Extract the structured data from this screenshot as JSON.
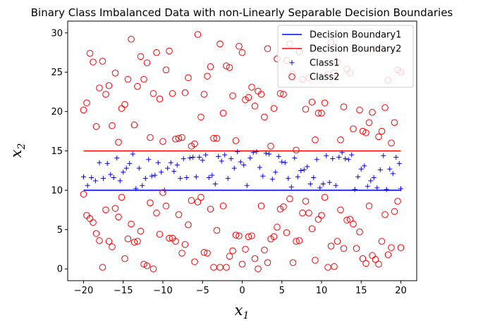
{
  "chart_data": {
    "type": "scatter",
    "title": "Binary Class Imbalanced Data with non-Linearly Separable Decision Boundaries",
    "xlabel": "x",
    "xlabel_sub": "1",
    "ylabel": "x",
    "ylabel_sub": "2",
    "xlim": [
      -22,
      22
    ],
    "ylim": [
      -1.5,
      31.5
    ],
    "xticks": [
      -20,
      -15,
      -10,
      -5,
      0,
      5,
      10,
      15,
      20
    ],
    "yticks": [
      0,
      5,
      10,
      15,
      20,
      25,
      30
    ],
    "legend_position": "top-right",
    "grid": false,
    "colors": {
      "boundary1": "#0000ff",
      "boundary2": "#ff0000",
      "class1": "#0000ff",
      "class2": "#ff0000"
    },
    "decision_boundaries": [
      {
        "name": "Decision Boundary1",
        "y": 10,
        "x_range": [
          -20,
          20
        ],
        "color": "#0000ff"
      },
      {
        "name": "Decision Boundary2",
        "y": 15,
        "x_range": [
          -20,
          20
        ],
        "color": "#ff0000"
      }
    ],
    "series": [
      {
        "name": "Class1",
        "marker": "plus",
        "color": "#0000ff",
        "points": [
          [
            -20,
            11.7
          ],
          [
            -19.5,
            10.6
          ],
          [
            -19,
            11.6
          ],
          [
            -18.5,
            11.2
          ],
          [
            -18,
            13.5
          ],
          [
            -17.5,
            11.5
          ],
          [
            -17,
            13.4
          ],
          [
            -16.6,
            12
          ],
          [
            -16.2,
            11.6
          ],
          [
            -15.8,
            14.1
          ],
          [
            -15.4,
            11.2
          ],
          [
            -15,
            12.3
          ],
          [
            -14.6,
            12.8
          ],
          [
            -14.2,
            13.4
          ],
          [
            -13.8,
            14.6
          ],
          [
            -13.4,
            10.2
          ],
          [
            -13,
            12.8
          ],
          [
            -12.6,
            10.6
          ],
          [
            -12.2,
            11.5
          ],
          [
            -11.8,
            13.9
          ],
          [
            -11.4,
            11.8
          ],
          [
            -11,
            11.9
          ],
          [
            -10.6,
            13.5
          ],
          [
            -10.2,
            12.3
          ],
          [
            -9.8,
            10
          ],
          [
            -9.4,
            12.8
          ],
          [
            -9,
            13.5
          ],
          [
            -8.6,
            12.4
          ],
          [
            -8.2,
            13.2
          ],
          [
            -7.8,
            11.5
          ],
          [
            -7.4,
            14
          ],
          [
            -7,
            11.6
          ],
          [
            -6.6,
            14.1
          ],
          [
            -6.2,
            14.2
          ],
          [
            -5.8,
            11.7
          ],
          [
            -5.4,
            14.2
          ],
          [
            -5,
            13.8
          ],
          [
            -4.6,
            14.5
          ],
          [
            -4.2,
            11.6
          ],
          [
            -3.8,
            11.9
          ],
          [
            -3.4,
            10.8
          ],
          [
            -3,
            14.3
          ],
          [
            -2.6,
            13.7
          ],
          [
            -2.2,
            14.5
          ],
          [
            -1.8,
            11.5
          ],
          [
            -1.4,
            14
          ],
          [
            -1,
            12.8
          ],
          [
            -0.6,
            14.9
          ],
          [
            -0.2,
            13.6
          ],
          [
            0.2,
            13.2
          ],
          [
            0.6,
            10.6
          ],
          [
            1,
            14.1
          ],
          [
            1.4,
            14.8
          ],
          [
            1.8,
            14.9
          ],
          [
            2.2,
            12.9
          ],
          [
            2.6,
            11.8
          ],
          [
            3,
            14.7
          ],
          [
            3.4,
            14.6
          ],
          [
            3.8,
            11.4
          ],
          [
            4.2,
            12.3
          ],
          [
            4.6,
            14.3
          ],
          [
            5,
            13.6
          ],
          [
            5.4,
            13.5
          ],
          [
            5.8,
            11.5
          ],
          [
            6.2,
            10.4
          ],
          [
            6.6,
            14.1
          ],
          [
            7,
            11.7
          ],
          [
            7.4,
            12.5
          ],
          [
            7.8,
            12.6
          ],
          [
            8.2,
            13
          ],
          [
            8.6,
            10.8
          ],
          [
            9,
            11.6
          ],
          [
            9.4,
            13.9
          ],
          [
            9.8,
            10.3
          ],
          [
            10.2,
            10.8
          ],
          [
            10.6,
            14.4
          ],
          [
            11,
            11
          ],
          [
            11.4,
            14
          ],
          [
            11.8,
            10.6
          ],
          [
            12.2,
            14.2
          ],
          [
            12.6,
            14.8
          ],
          [
            13,
            14
          ],
          [
            13.4,
            13.9
          ],
          [
            13.8,
            14.5
          ],
          [
            14.2,
            10.1
          ],
          [
            14.6,
            11.7
          ],
          [
            15,
            12.7
          ],
          [
            15.4,
            13.1
          ],
          [
            15.8,
            10.5
          ],
          [
            16.2,
            11.2
          ],
          [
            16.6,
            11.6
          ],
          [
            17,
            10.3
          ],
          [
            17.4,
            12.6
          ],
          [
            17.8,
            14.4
          ],
          [
            18.2,
            10.1
          ],
          [
            18.6,
            12.7
          ],
          [
            19,
            12.1
          ],
          [
            19.4,
            14.2
          ],
          [
            19.8,
            13.4
          ],
          [
            20,
            10.2
          ]
        ]
      },
      {
        "name": "Class2",
        "marker": "circle",
        "color": "#ff0000",
        "points": [
          [
            -20,
            20.2
          ],
          [
            -19.6,
            21.1
          ],
          [
            -19.2,
            27.4
          ],
          [
            -18.8,
            26.3
          ],
          [
            -18.4,
            18.1
          ],
          [
            -18,
            23
          ],
          [
            -17.6,
            26.4
          ],
          [
            -17.2,
            22.2
          ],
          [
            -16.8,
            23.3
          ],
          [
            -16.4,
            18.2
          ],
          [
            -16,
            24.9
          ],
          [
            -15.6,
            16.1
          ],
          [
            -15.2,
            20.4
          ],
          [
            -14.8,
            20.9
          ],
          [
            -14.4,
            24.1
          ],
          [
            -14,
            29.2
          ],
          [
            -13.6,
            18.3
          ],
          [
            -13.2,
            23.2
          ],
          [
            -12.8,
            27
          ],
          [
            -12.4,
            24.1
          ],
          [
            -12,
            26.2
          ],
          [
            -11.6,
            16.7
          ],
          [
            -11.2,
            22.3
          ],
          [
            -10.8,
            27.5
          ],
          [
            -10.4,
            21.6
          ],
          [
            -10,
            16.2
          ],
          [
            -9.6,
            25.3
          ],
          [
            -9.2,
            27.7
          ],
          [
            -8.8,
            22.3
          ],
          [
            -8.4,
            16.5
          ],
          [
            -8,
            16.6
          ],
          [
            -7.6,
            16.7
          ],
          [
            -7.2,
            22.4
          ],
          [
            -6.8,
            24.3
          ],
          [
            -6.4,
            15.6
          ],
          [
            -6,
            15.9
          ],
          [
            -5.6,
            29.8
          ],
          [
            -5.2,
            19.3
          ],
          [
            -4.8,
            22.2
          ],
          [
            -4.4,
            24.5
          ],
          [
            -4,
            25.7
          ],
          [
            -3.6,
            16.6
          ],
          [
            -3.2,
            16.6
          ],
          [
            -2.8,
            28.6
          ],
          [
            -2.4,
            19.8
          ],
          [
            -2,
            25.8
          ],
          [
            -1.6,
            25.6
          ],
          [
            -1.2,
            22
          ],
          [
            -0.8,
            16.3
          ],
          [
            -0.4,
            28.3
          ],
          [
            0,
            27.5
          ],
          [
            0.4,
            21.5
          ],
          [
            0.8,
            21.8
          ],
          [
            1.2,
            23.1
          ],
          [
            1.6,
            20.7
          ],
          [
            2,
            22.6
          ],
          [
            2.4,
            22.2
          ],
          [
            2.8,
            19.3
          ],
          [
            3.2,
            28
          ],
          [
            3.6,
            15.6
          ],
          [
            4,
            20.4
          ],
          [
            4.4,
            26.7
          ],
          [
            4.8,
            22.3
          ],
          [
            5.2,
            22.2
          ],
          [
            5.6,
            26.5
          ],
          [
            6,
            28.6
          ],
          [
            6.4,
            24.8
          ],
          [
            6.8,
            15.1
          ],
          [
            7.2,
            27.6
          ],
          [
            7.6,
            24.1
          ],
          [
            8,
            20.3
          ],
          [
            8.4,
            24.3
          ],
          [
            8.8,
            21.2
          ],
          [
            9.2,
            16.4
          ],
          [
            9.6,
            19.8
          ],
          [
            10,
            19.8
          ],
          [
            10.4,
            21.1
          ],
          [
            10.8,
            24.7
          ],
          [
            11.2,
            28.8
          ],
          [
            11.6,
            24.9
          ],
          [
            12,
            26.3
          ],
          [
            12.4,
            16.4
          ],
          [
            12.8,
            20.6
          ],
          [
            13.2,
            25.4
          ],
          [
            13.6,
            24.9
          ],
          [
            14,
            17.8
          ],
          [
            14.4,
            28.2
          ],
          [
            14.8,
            20.2
          ],
          [
            15.2,
            17.5
          ],
          [
            15.6,
            17.3
          ],
          [
            16,
            18.6
          ],
          [
            16.4,
            19.9
          ],
          [
            16.8,
            28
          ],
          [
            17.2,
            16.8
          ],
          [
            17.6,
            17.5
          ],
          [
            18,
            20.5
          ],
          [
            18.4,
            24
          ],
          [
            18.8,
            16
          ],
          [
            19.2,
            18.6
          ],
          [
            19.6,
            25.3
          ],
          [
            20,
            25
          ],
          [
            -20,
            9.5
          ],
          [
            -19.6,
            6.8
          ],
          [
            -19.2,
            6.4
          ],
          [
            -18.8,
            5.9
          ],
          [
            -18.4,
            4.5
          ],
          [
            -18,
            3.6
          ],
          [
            -17.6,
            0.2
          ],
          [
            -17.2,
            7.5
          ],
          [
            -16.8,
            3.5
          ],
          [
            -16.4,
            2.8
          ],
          [
            -16,
            7.7
          ],
          [
            -15.6,
            6.6
          ],
          [
            -15.2,
            9.1
          ],
          [
            -14.8,
            1.3
          ],
          [
            -14.4,
            3.8
          ],
          [
            -14,
            5.7
          ],
          [
            -13.6,
            3.4
          ],
          [
            -13.2,
            3.5
          ],
          [
            -12.8,
            4.8
          ],
          [
            -12.4,
            0.6
          ],
          [
            -12,
            0.4
          ],
          [
            -11.6,
            8.4
          ],
          [
            -11.2,
            0
          ],
          [
            -10.8,
            7.1
          ],
          [
            -10.4,
            4.4
          ],
          [
            -10,
            9.7
          ],
          [
            -9.6,
            8
          ],
          [
            -9.2,
            3.9
          ],
          [
            -8.8,
            3.9
          ],
          [
            -8.4,
            3.5
          ],
          [
            -8,
            6.9
          ],
          [
            -7.6,
            2
          ],
          [
            -7.2,
            3.1
          ],
          [
            -6.8,
            5.6
          ],
          [
            -6.4,
            8.7
          ],
          [
            -6,
            0.9
          ],
          [
            -5.6,
            8.5
          ],
          [
            -5.2,
            9.1
          ],
          [
            -4.8,
            2.1
          ],
          [
            -4.4,
            2
          ],
          [
            -4,
            7.6
          ],
          [
            -3.6,
            0.2
          ],
          [
            -3.2,
            4.9
          ],
          [
            -2.8,
            0.2
          ],
          [
            -2.4,
            8
          ],
          [
            -2,
            0.2
          ],
          [
            -1.6,
            1.6
          ],
          [
            -1.2,
            2.3
          ],
          [
            -0.8,
            4.3
          ],
          [
            -0.4,
            4.2
          ],
          [
            0,
            0.6
          ],
          [
            0.4,
            2.5
          ],
          [
            0.8,
            4.1
          ],
          [
            1.2,
            4.2
          ],
          [
            1.6,
            1.3
          ],
          [
            2,
            0
          ],
          [
            2.4,
            8
          ],
          [
            2.8,
            2.4
          ],
          [
            3.2,
            0.8
          ],
          [
            3.6,
            3.8
          ],
          [
            4,
            4.1
          ],
          [
            4.4,
            5.3
          ],
          [
            4.8,
            7.6
          ],
          [
            5.2,
            7.9
          ],
          [
            5.6,
            4.6
          ],
          [
            6,
            8.9
          ],
          [
            6.4,
            0.8
          ],
          [
            6.8,
            3.5
          ],
          [
            7.2,
            3.6
          ],
          [
            7.6,
            7.1
          ],
          [
            8,
            8.6
          ],
          [
            8.4,
            7.1
          ],
          [
            8.8,
            5.1
          ],
          [
            9.2,
            1.1
          ],
          [
            9.6,
            6.3
          ],
          [
            10,
            6.8
          ],
          [
            10.4,
            9.1
          ],
          [
            10.8,
            0.2
          ],
          [
            11.2,
            2.9
          ],
          [
            11.6,
            0.3
          ],
          [
            12,
            3.5
          ],
          [
            12.4,
            7.5
          ],
          [
            12.8,
            2.6
          ],
          [
            13.2,
            6.2
          ],
          [
            13.6,
            6.3
          ],
          [
            14,
            5.7
          ],
          [
            14.4,
            2.6
          ],
          [
            14.8,
            4.7
          ],
          [
            15.2,
            1.3
          ],
          [
            15.6,
            0.7
          ],
          [
            16,
            8
          ],
          [
            16.4,
            1.7
          ],
          [
            16.8,
            1.2
          ],
          [
            17.2,
            0.6
          ],
          [
            17.6,
            3.5
          ],
          [
            18,
            6.9
          ],
          [
            18.4,
            1.8
          ],
          [
            18.8,
            2.7
          ],
          [
            19.2,
            7.3
          ],
          [
            19.6,
            8.6
          ],
          [
            20,
            2.7
          ]
        ]
      }
    ]
  }
}
